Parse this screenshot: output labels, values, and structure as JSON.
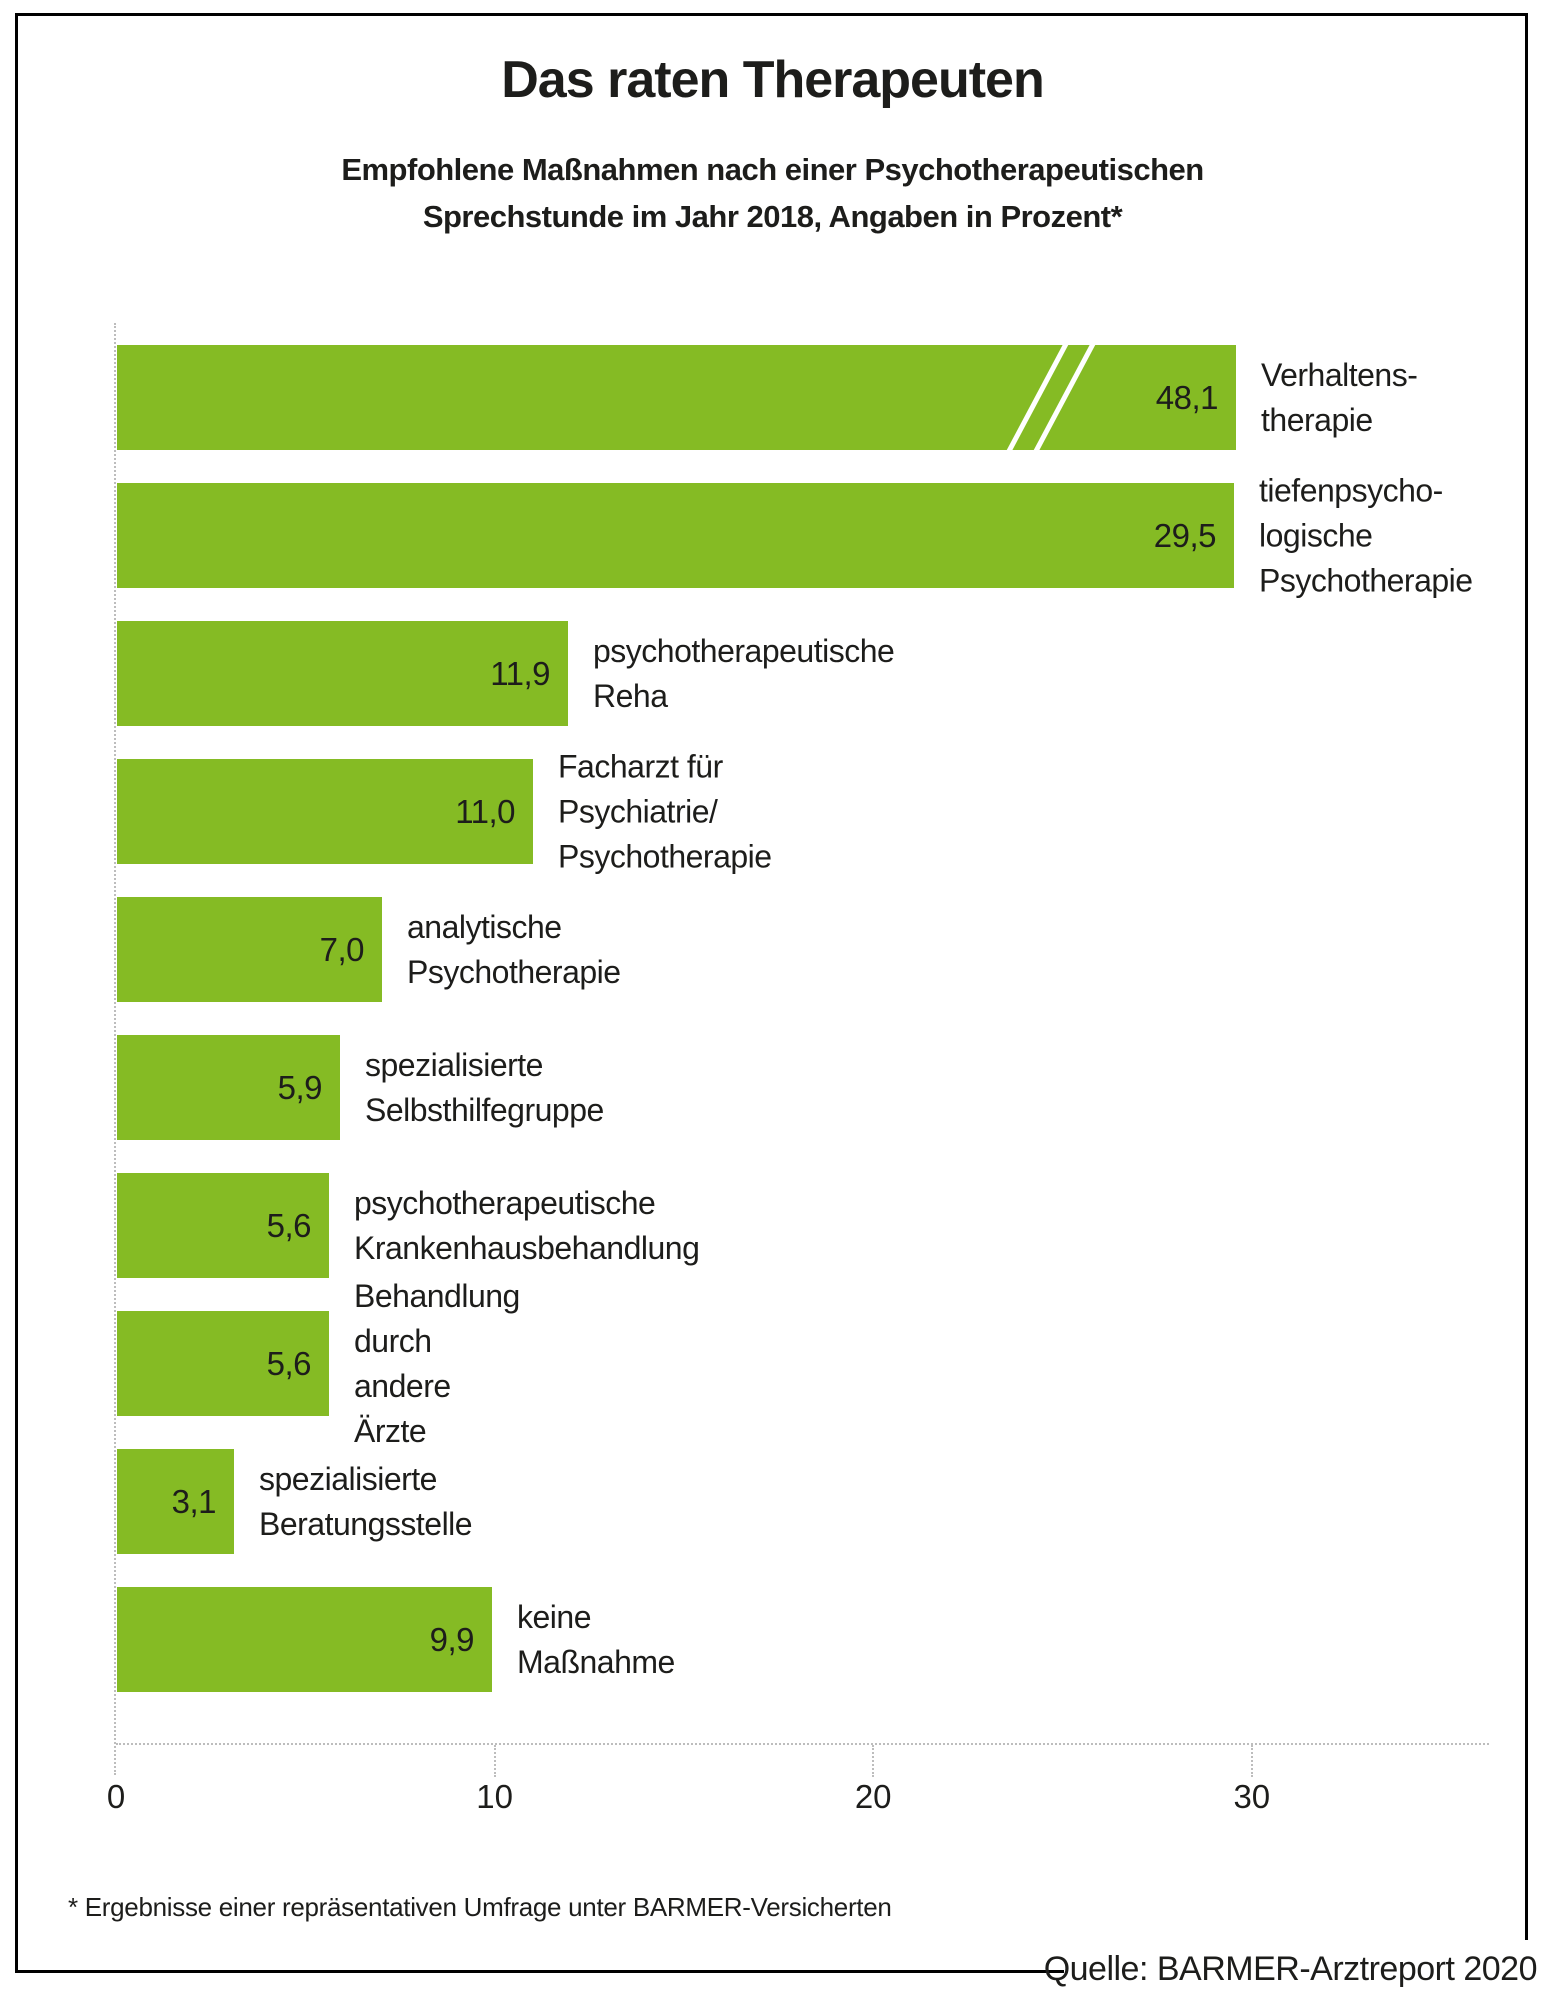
{
  "title": "Das raten Therapeuten",
  "subtitle": {
    "line1": "Empfohlene Maßnahmen nach einer Psychotherapeutischen",
    "line2": "Sprechstunde im Jahr 2018, Angaben in Prozent*"
  },
  "footnote": "* Ergebnisse einer repräsentativen Umfrage unter BARMER-Versicherten",
  "source": "Quelle: BARMER-Arztreport 2020",
  "colors": {
    "bar": "#85bb24",
    "text": "#1d1d1b",
    "grid": "#bdbdbd",
    "frame": "#000000",
    "background": "#ffffff"
  },
  "chart_data": {
    "type": "bar",
    "orientation": "horizontal",
    "title": "Das raten Therapeuten",
    "subtitle": "Empfohlene Maßnahmen nach einer Psychotherapeutischen Sprechstunde im Jahr 2018, Angaben in Prozent*",
    "unit": "Prozent",
    "categories": [
      "Verhaltens-\ntherapie",
      "tiefenpsycho-\nlogische\nPsychotherapie",
      "psychotherapeutische Reha",
      "Facharzt für Psychiatrie/ Psychotherapie",
      "analytische Psychotherapie",
      "spezialisierte Selbsthilfegruppe",
      "psychotherapeutische Krankenhausbehandlung",
      "Behandlung durch andere Ärzte",
      "spezialisierte Beratungsstelle",
      "keine Maßnahme"
    ],
    "values": [
      48.1,
      29.5,
      11.9,
      11.0,
      7.0,
      5.9,
      5.6,
      5.6,
      3.1,
      9.9
    ],
    "value_labels": [
      "48,1",
      "29,5",
      "11,9",
      "11,0",
      "7,0",
      "5,9",
      "5,6",
      "5,6",
      "3,1",
      "9,9"
    ],
    "xticks": [
      0,
      10,
      20,
      30
    ],
    "xtick_labels": [
      "0",
      "10",
      "20",
      "30"
    ],
    "xlim": [
      0,
      36.3
    ],
    "grid": "dotted-zero-line-and-tick-stubs",
    "legend": false,
    "axis_break": {
      "applies_to_index": 0,
      "drawn_at_value": 29.55
    }
  }
}
